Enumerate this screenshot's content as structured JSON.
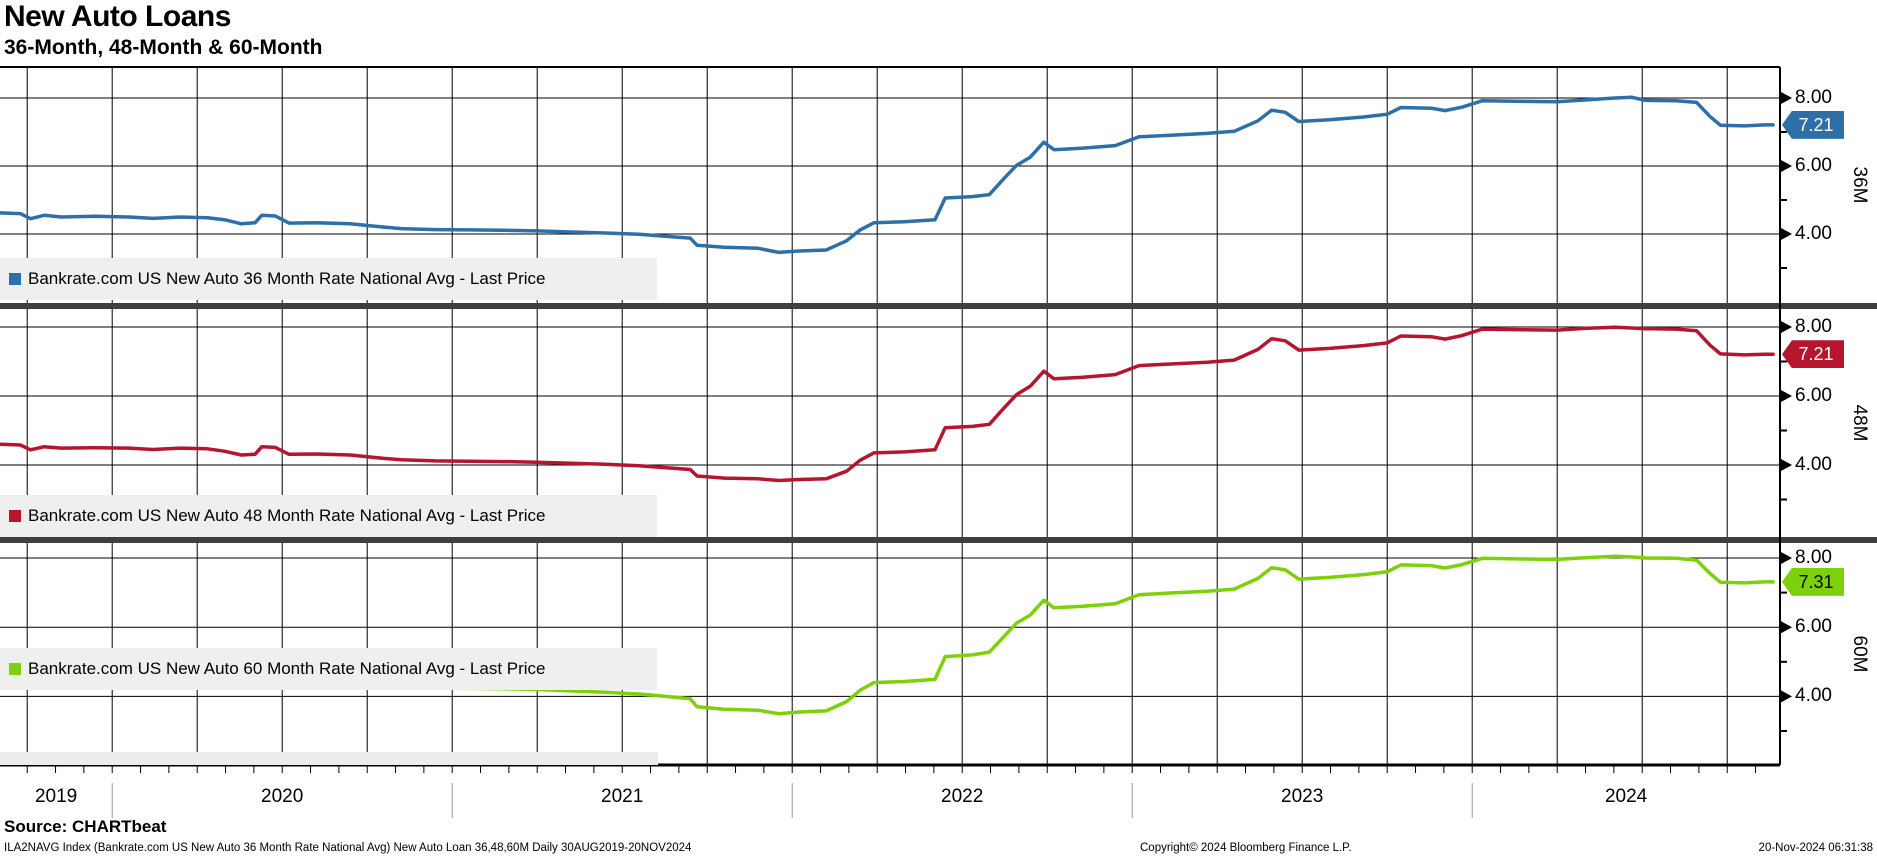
{
  "header": {
    "title": "New Auto Loans",
    "subtitle": "36-Month, 48-Month & 60-Month"
  },
  "footer": {
    "source": "Source: CHARTbeat",
    "description": "ILA2NAVG Index (Bankrate.com US New Auto 36 Month Rate National Avg) New Auto Loan 36,48,60M  Daily 30AUG2019-20NOV2024",
    "copyright": "Copyright© 2024 Bloomberg Finance L.P.",
    "timestamp": "20-Nov-2024 06:31:38"
  },
  "colors": {
    "blue": "#2e6fa7",
    "red": "#b5152f",
    "green": "#7dd10b",
    "separator": "#3f3f3f",
    "legend_bg": "#efefee",
    "grid": "#000000"
  },
  "chart_data": {
    "type": "line",
    "title": "New Auto Loans",
    "subtitle": "36-Month, 48-Month & 60-Month",
    "x_range_label": [
      "30AUG2019",
      "20NOV2024"
    ],
    "x_tick_years": [
      "2019",
      "2020",
      "2021",
      "2022",
      "2023",
      "2024"
    ],
    "grid": "quarterly vertical lines, horizontal lines at 4.00 / 6.00 / 8.00",
    "y_axis_side": "right",
    "ylim": [
      2.0,
      8.9
    ],
    "legend_position": "bottom-left inside each panel",
    "panels": [
      {
        "label": "36M",
        "legend": "Bankrate.com US New Auto 36 Month Rate National Avg - Last Price",
        "color_key": "blue",
        "last_price": "7.21",
        "last_price_text_color": "#ffffff",
        "y_ticks": [
          "8.00",
          "6.00",
          "4.00"
        ],
        "points": [
          [
            2019.67,
            4.62
          ],
          [
            2019.73,
            4.6
          ],
          [
            2019.76,
            4.45
          ],
          [
            2019.8,
            4.55
          ],
          [
            2019.85,
            4.5
          ],
          [
            2019.95,
            4.52
          ],
          [
            2020.05,
            4.5
          ],
          [
            2020.12,
            4.46
          ],
          [
            2020.2,
            4.5
          ],
          [
            2020.28,
            4.48
          ],
          [
            2020.33,
            4.42
          ],
          [
            2020.38,
            4.3
          ],
          [
            2020.42,
            4.33
          ],
          [
            2020.44,
            4.55
          ],
          [
            2020.48,
            4.53
          ],
          [
            2020.52,
            4.32
          ],
          [
            2020.6,
            4.33
          ],
          [
            2020.7,
            4.3
          ],
          [
            2020.78,
            4.22
          ],
          [
            2020.85,
            4.16
          ],
          [
            2020.95,
            4.13
          ],
          [
            2021.05,
            4.12
          ],
          [
            2021.15,
            4.11
          ],
          [
            2021.25,
            4.09
          ],
          [
            2021.35,
            4.06
          ],
          [
            2021.45,
            4.03
          ],
          [
            2021.55,
            3.99
          ],
          [
            2021.63,
            3.93
          ],
          [
            2021.7,
            3.88
          ],
          [
            2021.72,
            3.67
          ],
          [
            2021.8,
            3.61
          ],
          [
            2021.9,
            3.58
          ],
          [
            2021.96,
            3.46
          ],
          [
            2022.02,
            3.5
          ],
          [
            2022.1,
            3.53
          ],
          [
            2022.16,
            3.8
          ],
          [
            2022.2,
            4.12
          ],
          [
            2022.24,
            4.33
          ],
          [
            2022.33,
            4.36
          ],
          [
            2022.42,
            4.42
          ],
          [
            2022.45,
            5.06
          ],
          [
            2022.53,
            5.1
          ],
          [
            2022.58,
            5.16
          ],
          [
            2022.62,
            5.6
          ],
          [
            2022.66,
            6.02
          ],
          [
            2022.7,
            6.26
          ],
          [
            2022.74,
            6.7
          ],
          [
            2022.77,
            6.48
          ],
          [
            2022.85,
            6.52
          ],
          [
            2022.95,
            6.6
          ],
          [
            2023.02,
            6.86
          ],
          [
            2023.12,
            6.91
          ],
          [
            2023.22,
            6.96
          ],
          [
            2023.3,
            7.02
          ],
          [
            2023.37,
            7.33
          ],
          [
            2023.41,
            7.64
          ],
          [
            2023.45,
            7.58
          ],
          [
            2023.49,
            7.31
          ],
          [
            2023.58,
            7.36
          ],
          [
            2023.68,
            7.44
          ],
          [
            2023.75,
            7.52
          ],
          [
            2023.79,
            7.72
          ],
          [
            2023.88,
            7.7
          ],
          [
            2023.92,
            7.63
          ],
          [
            2023.97,
            7.73
          ],
          [
            2024.03,
            7.92
          ],
          [
            2024.15,
            7.9
          ],
          [
            2024.25,
            7.89
          ],
          [
            2024.33,
            7.94
          ],
          [
            2024.42,
            8.0
          ],
          [
            2024.47,
            8.02
          ],
          [
            2024.51,
            7.93
          ],
          [
            2024.6,
            7.92
          ],
          [
            2024.66,
            7.87
          ],
          [
            2024.7,
            7.45
          ],
          [
            2024.73,
            7.2
          ],
          [
            2024.8,
            7.18
          ],
          [
            2024.86,
            7.21
          ],
          [
            2024.885,
            7.21
          ]
        ]
      },
      {
        "label": "48M",
        "legend": "Bankrate.com US New Auto 48 Month Rate National Avg - Last Price",
        "color_key": "red",
        "last_price": "7.21",
        "last_price_text_color": "#ffffff",
        "y_ticks": [
          "8.00",
          "6.00",
          "4.00"
        ],
        "points": [
          [
            2019.67,
            4.6
          ],
          [
            2019.73,
            4.58
          ],
          [
            2019.76,
            4.44
          ],
          [
            2019.8,
            4.53
          ],
          [
            2019.85,
            4.49
          ],
          [
            2019.95,
            4.5
          ],
          [
            2020.05,
            4.49
          ],
          [
            2020.12,
            4.45
          ],
          [
            2020.2,
            4.49
          ],
          [
            2020.28,
            4.47
          ],
          [
            2020.33,
            4.4
          ],
          [
            2020.38,
            4.29
          ],
          [
            2020.42,
            4.31
          ],
          [
            2020.44,
            4.53
          ],
          [
            2020.48,
            4.51
          ],
          [
            2020.52,
            4.31
          ],
          [
            2020.6,
            4.32
          ],
          [
            2020.7,
            4.29
          ],
          [
            2020.78,
            4.21
          ],
          [
            2020.85,
            4.15
          ],
          [
            2020.95,
            4.12
          ],
          [
            2021.05,
            4.11
          ],
          [
            2021.15,
            4.1
          ],
          [
            2021.25,
            4.08
          ],
          [
            2021.35,
            4.05
          ],
          [
            2021.45,
            4.02
          ],
          [
            2021.55,
            3.98
          ],
          [
            2021.63,
            3.92
          ],
          [
            2021.7,
            3.87
          ],
          [
            2021.72,
            3.68
          ],
          [
            2021.8,
            3.62
          ],
          [
            2021.9,
            3.6
          ],
          [
            2021.96,
            3.55
          ],
          [
            2022.02,
            3.58
          ],
          [
            2022.1,
            3.6
          ],
          [
            2022.16,
            3.82
          ],
          [
            2022.2,
            4.14
          ],
          [
            2022.24,
            4.35
          ],
          [
            2022.33,
            4.38
          ],
          [
            2022.42,
            4.44
          ],
          [
            2022.45,
            5.08
          ],
          [
            2022.53,
            5.12
          ],
          [
            2022.58,
            5.18
          ],
          [
            2022.62,
            5.62
          ],
          [
            2022.66,
            6.04
          ],
          [
            2022.7,
            6.28
          ],
          [
            2022.74,
            6.72
          ],
          [
            2022.77,
            6.5
          ],
          [
            2022.85,
            6.54
          ],
          [
            2022.95,
            6.62
          ],
          [
            2023.02,
            6.88
          ],
          [
            2023.12,
            6.93
          ],
          [
            2023.22,
            6.98
          ],
          [
            2023.3,
            7.04
          ],
          [
            2023.37,
            7.35
          ],
          [
            2023.41,
            7.66
          ],
          [
            2023.45,
            7.6
          ],
          [
            2023.49,
            7.33
          ],
          [
            2023.58,
            7.38
          ],
          [
            2023.68,
            7.46
          ],
          [
            2023.75,
            7.54
          ],
          [
            2023.79,
            7.74
          ],
          [
            2023.88,
            7.72
          ],
          [
            2023.92,
            7.65
          ],
          [
            2023.97,
            7.75
          ],
          [
            2024.03,
            7.94
          ],
          [
            2024.15,
            7.92
          ],
          [
            2024.25,
            7.91
          ],
          [
            2024.33,
            7.96
          ],
          [
            2024.42,
            7.99
          ],
          [
            2024.47,
            7.97
          ],
          [
            2024.51,
            7.95
          ],
          [
            2024.6,
            7.94
          ],
          [
            2024.66,
            7.89
          ],
          [
            2024.7,
            7.47
          ],
          [
            2024.73,
            7.22
          ],
          [
            2024.8,
            7.19
          ],
          [
            2024.86,
            7.21
          ],
          [
            2024.885,
            7.21
          ]
        ]
      },
      {
        "label": "60M",
        "legend": "Bankrate.com US New Auto 60 Month Rate National Avg - Last Price",
        "color_key": "green",
        "last_price": "7.31",
        "last_price_text_color": "#000000",
        "y_ticks": [
          "8.00",
          "6.00",
          "4.00"
        ],
        "points": [
          [
            2019.67,
            4.7
          ],
          [
            2019.73,
            4.68
          ],
          [
            2019.76,
            4.55
          ],
          [
            2019.8,
            4.65
          ],
          [
            2019.85,
            4.62
          ],
          [
            2019.95,
            4.63
          ],
          [
            2020.05,
            4.62
          ],
          [
            2020.12,
            4.58
          ],
          [
            2020.2,
            4.62
          ],
          [
            2020.28,
            4.6
          ],
          [
            2020.33,
            4.52
          ],
          [
            2020.38,
            4.42
          ],
          [
            2020.42,
            4.45
          ],
          [
            2020.44,
            4.65
          ],
          [
            2020.48,
            4.63
          ],
          [
            2020.52,
            4.45
          ],
          [
            2020.6,
            4.46
          ],
          [
            2020.7,
            4.42
          ],
          [
            2020.78,
            4.33
          ],
          [
            2020.85,
            4.27
          ],
          [
            2020.95,
            4.24
          ],
          [
            2021.05,
            4.23
          ],
          [
            2021.15,
            4.22
          ],
          [
            2021.25,
            4.2
          ],
          [
            2021.35,
            4.16
          ],
          [
            2021.45,
            4.12
          ],
          [
            2021.55,
            4.07
          ],
          [
            2021.63,
            4.0
          ],
          [
            2021.7,
            3.93
          ],
          [
            2021.72,
            3.7
          ],
          [
            2021.8,
            3.63
          ],
          [
            2021.9,
            3.6
          ],
          [
            2021.96,
            3.5
          ],
          [
            2022.02,
            3.55
          ],
          [
            2022.1,
            3.58
          ],
          [
            2022.16,
            3.85
          ],
          [
            2022.2,
            4.18
          ],
          [
            2022.24,
            4.4
          ],
          [
            2022.33,
            4.43
          ],
          [
            2022.42,
            4.49
          ],
          [
            2022.45,
            5.15
          ],
          [
            2022.53,
            5.2
          ],
          [
            2022.58,
            5.28
          ],
          [
            2022.62,
            5.7
          ],
          [
            2022.66,
            6.12
          ],
          [
            2022.7,
            6.35
          ],
          [
            2022.74,
            6.78
          ],
          [
            2022.77,
            6.56
          ],
          [
            2022.85,
            6.6
          ],
          [
            2022.95,
            6.68
          ],
          [
            2023.02,
            6.94
          ],
          [
            2023.12,
            6.99
          ],
          [
            2023.22,
            7.04
          ],
          [
            2023.3,
            7.1
          ],
          [
            2023.37,
            7.41
          ],
          [
            2023.41,
            7.72
          ],
          [
            2023.45,
            7.66
          ],
          [
            2023.49,
            7.39
          ],
          [
            2023.58,
            7.44
          ],
          [
            2023.68,
            7.52
          ],
          [
            2023.75,
            7.6
          ],
          [
            2023.79,
            7.8
          ],
          [
            2023.88,
            7.78
          ],
          [
            2023.92,
            7.71
          ],
          [
            2023.97,
            7.81
          ],
          [
            2024.03,
            7.99
          ],
          [
            2024.15,
            7.97
          ],
          [
            2024.25,
            7.96
          ],
          [
            2024.33,
            8.01
          ],
          [
            2024.42,
            8.05
          ],
          [
            2024.47,
            8.03
          ],
          [
            2024.51,
            8.0
          ],
          [
            2024.6,
            7.99
          ],
          [
            2024.66,
            7.94
          ],
          [
            2024.7,
            7.55
          ],
          [
            2024.73,
            7.3
          ],
          [
            2024.8,
            7.28
          ],
          [
            2024.86,
            7.31
          ],
          [
            2024.885,
            7.31
          ]
        ]
      }
    ]
  }
}
